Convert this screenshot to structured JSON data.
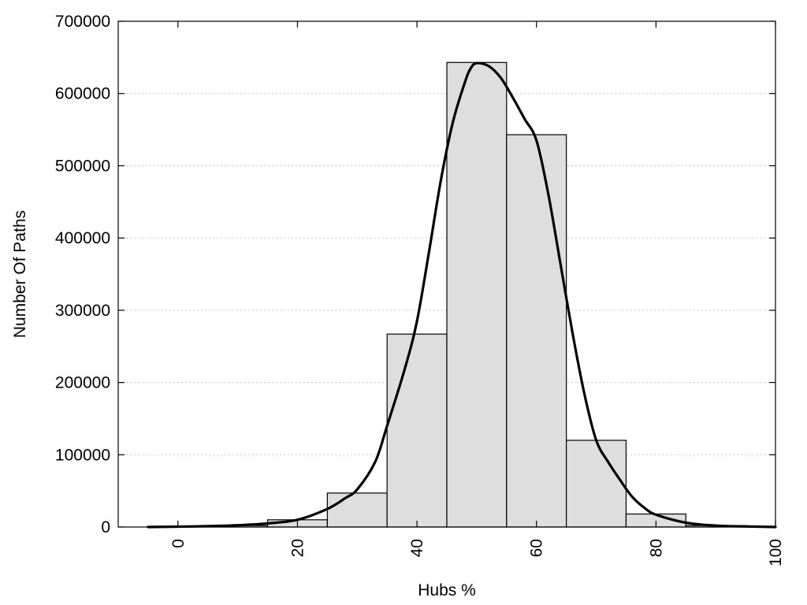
{
  "chart_data": {
    "type": "bar",
    "title": "",
    "xlabel": "Hubs %",
    "ylabel": "Number Of Paths",
    "xlim": [
      -10,
      100
    ],
    "ylim": [
      0,
      700000
    ],
    "xticks": [
      0,
      20,
      40,
      60,
      80,
      100
    ],
    "yticks": [
      0,
      100000,
      200000,
      300000,
      400000,
      500000,
      600000,
      700000
    ],
    "grid": "horizontal-dotted",
    "bin_width": 10,
    "bins": [
      {
        "center": 0,
        "value": 1000
      },
      {
        "center": 10,
        "value": 2000
      },
      {
        "center": 20,
        "value": 10000
      },
      {
        "center": 30,
        "value": 47000
      },
      {
        "center": 40,
        "value": 267000
      },
      {
        "center": 50,
        "value": 643000
      },
      {
        "center": 60,
        "value": 543000
      },
      {
        "center": 70,
        "value": 120000
      },
      {
        "center": 80,
        "value": 18000
      },
      {
        "center": 90,
        "value": 2000
      }
    ],
    "density_curve": {
      "x": [
        -5,
        0,
        5,
        10,
        15,
        20,
        25,
        28,
        30,
        33,
        35,
        38,
        40,
        42,
        44,
        46,
        48,
        49,
        50,
        52,
        54,
        56,
        58,
        60,
        62,
        64,
        66,
        68,
        70,
        72,
        74,
        76,
        78,
        80,
        85,
        90,
        95,
        100
      ],
      "y": [
        0,
        500,
        1200,
        2500,
        5000,
        10000,
        25000,
        40000,
        52000,
        90000,
        140000,
        220000,
        285000,
        380000,
        480000,
        560000,
        615000,
        635000,
        642000,
        638000,
        622000,
        595000,
        565000,
        535000,
        460000,
        365000,
        270000,
        185000,
        120000,
        90000,
        65000,
        42000,
        27000,
        17000,
        6000,
        2000,
        800,
        0
      ]
    }
  }
}
